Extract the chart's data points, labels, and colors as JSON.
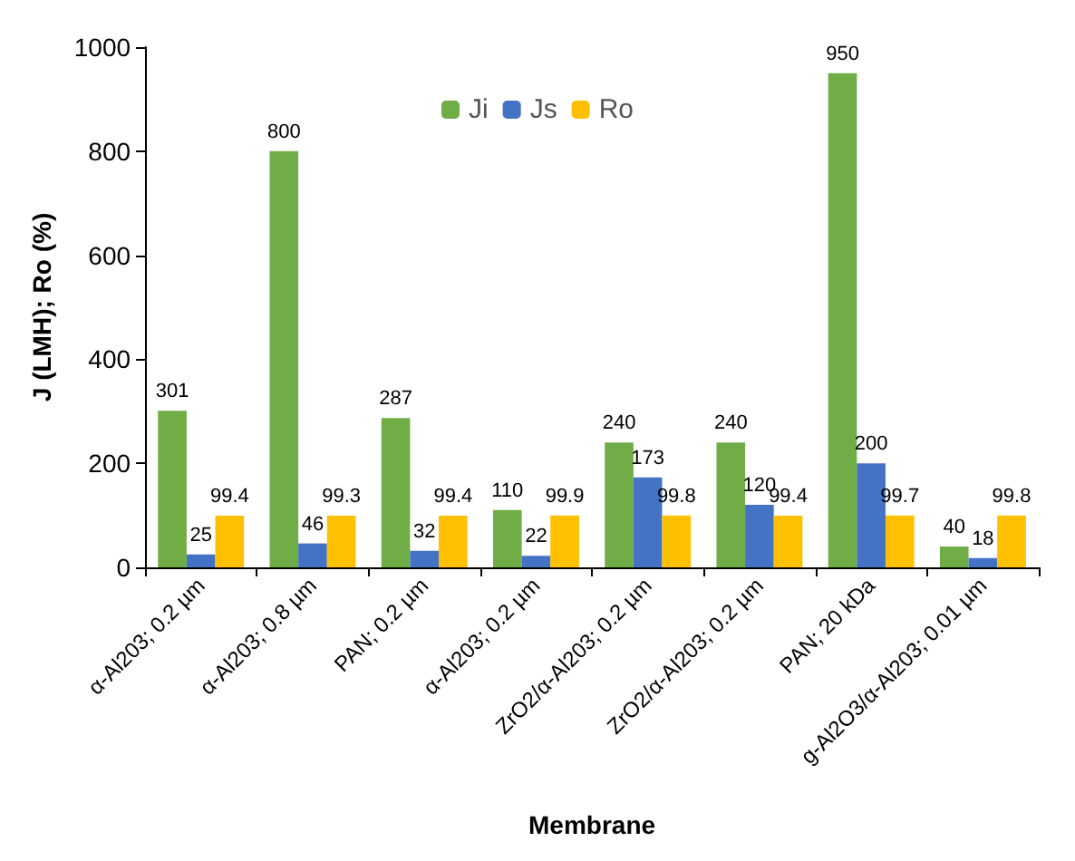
{
  "chart_data": {
    "type": "bar",
    "xlabel": "Membrane",
    "ylabel": "J (LMH); Ro (%)",
    "categories": [
      "α-Al203; 0.2 µm",
      "α-Al203; 0.8 µm",
      "PAN; 0.2 µm",
      "α-Al203; 0.2 µm",
      "ZrO2/α-Al203; 0.2 µm",
      "ZrO2/α-Al203; 0.2 µm",
      "PAN; 20 kDa",
      "g-Al2O3/α-Al203; 0.01 µm"
    ],
    "series": [
      {
        "name": "Ji",
        "color": "#70ad47",
        "values": [
          301,
          800,
          287,
          110,
          240,
          240,
          950,
          40
        ]
      },
      {
        "name": "Js",
        "color": "#4472c4",
        "values": [
          25,
          46,
          32,
          22,
          173,
          120,
          200,
          18
        ]
      },
      {
        "name": "Ro",
        "color": "#ffc000",
        "values": [
          99.4,
          99.3,
          99.4,
          99.9,
          99.8,
          99.4,
          99.7,
          99.8
        ]
      }
    ],
    "ylim": [
      0,
      1000
    ],
    "yticks": [
      0,
      200,
      400,
      600,
      800,
      1000
    ],
    "grid": false,
    "legend": "top",
    "data_labels": true
  }
}
